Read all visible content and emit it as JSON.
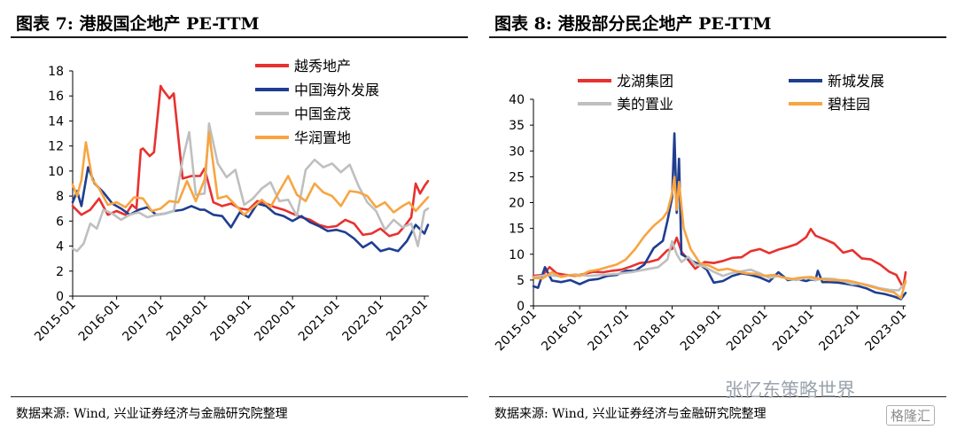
{
  "charts": [
    {
      "title": "图表 7:  港股国企地产 PE-TTM",
      "source": "数据来源: Wind, 兴业证券经济与金融研究院整理"
    },
    {
      "title": "图表 8:  港股部分民企地产 PE-TTM",
      "source": "数据来源: Wind, 兴业证券经济与金融研究院整理"
    }
  ],
  "watermark": {
    "text": "张忆东策略世界",
    "logo": "格隆汇"
  },
  "chart_data": [
    {
      "type": "line",
      "title": "图表 7:  港股国企地产 PE-TTM",
      "xlabel": "",
      "ylabel": "",
      "ylim": [
        0,
        18
      ],
      "yticks": [
        0,
        2,
        4,
        6,
        8,
        10,
        12,
        14,
        16,
        18
      ],
      "xticks": [
        "2015-01",
        "2016-01",
        "2017-01",
        "2018-01",
        "2019-01",
        "2020-01",
        "2021-01",
        "2022-01",
        "2023-01"
      ],
      "xlim": [
        2015.0,
        2023.1
      ],
      "legend": "top-right",
      "grid": false,
      "series": [
        {
          "name": "越秀地产",
          "color": "#e8312f",
          "x": [
            2015.0,
            2015.2,
            2015.4,
            2015.6,
            2015.8,
            2016.0,
            2016.2,
            2016.35,
            2016.45,
            2016.55,
            2016.6,
            2016.75,
            2016.85,
            2017.0,
            2017.05,
            2017.2,
            2017.3,
            2017.5,
            2017.7,
            2017.9,
            2018.0,
            2018.2,
            2018.4,
            2018.6,
            2018.8,
            2019.0,
            2019.2,
            2019.4,
            2019.6,
            2019.8,
            2020.0,
            2020.2,
            2020.4,
            2020.6,
            2020.8,
            2021.0,
            2021.2,
            2021.4,
            2021.6,
            2021.8,
            2022.0,
            2022.2,
            2022.4,
            2022.55,
            2022.7,
            2022.8,
            2022.9,
            2023.0,
            2023.08
          ],
          "values": [
            7.2,
            6.5,
            6.9,
            7.8,
            6.5,
            6.8,
            6.5,
            7.3,
            7.0,
            11.7,
            11.8,
            11.2,
            11.5,
            16.8,
            16.5,
            15.8,
            16.2,
            9.4,
            9.6,
            9.6,
            10.2,
            7.5,
            7.2,
            7.4,
            7.0,
            6.9,
            7.6,
            7.4,
            7.1,
            6.9,
            6.6,
            6.3,
            6.1,
            5.7,
            5.5,
            5.6,
            6.1,
            5.8,
            4.9,
            5.0,
            5.4,
            4.8,
            5.0,
            5.6,
            6.3,
            9.0,
            8.2,
            8.8,
            9.2
          ]
        },
        {
          "name": "中国海外发展",
          "color": "#1f3e91",
          "x": [
            2015.0,
            2015.1,
            2015.2,
            2015.35,
            2015.5,
            2015.7,
            2015.9,
            2016.1,
            2016.3,
            2016.5,
            2016.7,
            2016.9,
            2017.1,
            2017.3,
            2017.5,
            2017.7,
            2017.9,
            2018.0,
            2018.2,
            2018.4,
            2018.6,
            2018.8,
            2019.0,
            2019.2,
            2019.4,
            2019.6,
            2019.8,
            2020.0,
            2020.2,
            2020.4,
            2020.6,
            2020.8,
            2021.0,
            2021.2,
            2021.4,
            2021.6,
            2021.8,
            2022.0,
            2022.2,
            2022.4,
            2022.6,
            2022.8,
            2023.0,
            2023.08
          ],
          "values": [
            7.5,
            8.4,
            7.2,
            10.3,
            9.0,
            8.3,
            7.4,
            7.0,
            6.5,
            6.9,
            7.1,
            6.5,
            6.6,
            6.8,
            6.9,
            7.2,
            6.9,
            6.9,
            6.5,
            6.4,
            5.5,
            6.7,
            6.3,
            7.4,
            7.2,
            6.6,
            6.4,
            6.0,
            6.4,
            5.9,
            5.6,
            5.2,
            5.3,
            5.1,
            4.6,
            3.9,
            4.3,
            3.6,
            3.8,
            3.6,
            4.4,
            5.7,
            5.0,
            5.7
          ]
        },
        {
          "name": "中国金茂",
          "color": "#bfbfbf",
          "x": [
            2015.0,
            2015.1,
            2015.25,
            2015.4,
            2015.55,
            2015.7,
            2015.9,
            2016.1,
            2016.3,
            2016.5,
            2016.7,
            2016.9,
            2017.1,
            2017.3,
            2017.5,
            2017.65,
            2017.8,
            2018.0,
            2018.1,
            2018.3,
            2018.5,
            2018.7,
            2018.9,
            2019.1,
            2019.3,
            2019.5,
            2019.7,
            2019.9,
            2020.1,
            2020.3,
            2020.5,
            2020.7,
            2020.9,
            2021.1,
            2021.3,
            2021.5,
            2021.7,
            2021.9,
            2022.1,
            2022.3,
            2022.5,
            2022.7,
            2022.85,
            2023.0,
            2023.08
          ],
          "values": [
            3.8,
            3.6,
            4.2,
            5.8,
            5.4,
            6.9,
            6.6,
            6.1,
            6.5,
            6.7,
            6.3,
            6.5,
            6.6,
            6.8,
            10.9,
            13.1,
            8.1,
            8.2,
            13.8,
            10.6,
            9.5,
            10.1,
            7.3,
            7.8,
            8.6,
            9.1,
            7.6,
            7.7,
            6.4,
            10.1,
            10.9,
            10.3,
            10.6,
            9.9,
            10.5,
            8.8,
            7.5,
            6.8,
            5.3,
            6.1,
            5.5,
            5.8,
            4.0,
            6.8,
            7.0
          ]
        },
        {
          "name": "华润置地",
          "color": "#f7a541",
          "x": [
            2015.0,
            2015.1,
            2015.2,
            2015.3,
            2015.45,
            2015.6,
            2015.8,
            2016.0,
            2016.2,
            2016.4,
            2016.6,
            2016.8,
            2017.0,
            2017.2,
            2017.4,
            2017.6,
            2017.8,
            2018.0,
            2018.1,
            2018.3,
            2018.5,
            2018.7,
            2018.9,
            2019.1,
            2019.3,
            2019.5,
            2019.7,
            2019.9,
            2020.1,
            2020.3,
            2020.5,
            2020.7,
            2020.9,
            2021.1,
            2021.3,
            2021.5,
            2021.7,
            2021.9,
            2022.1,
            2022.3,
            2022.5,
            2022.65,
            2022.8,
            2022.95,
            2023.08
          ],
          "values": [
            8.9,
            8.0,
            9.3,
            12.3,
            9.3,
            8.6,
            7.3,
            7.5,
            7.1,
            7.9,
            7.8,
            6.8,
            7.0,
            7.6,
            7.5,
            9.2,
            7.6,
            9.3,
            13.1,
            7.8,
            8.0,
            7.3,
            6.5,
            7.1,
            7.7,
            7.1,
            8.4,
            9.6,
            8.1,
            7.6,
            9.0,
            8.3,
            8.0,
            7.2,
            8.4,
            8.3,
            8.0,
            7.1,
            7.5,
            6.7,
            7.2,
            7.5,
            6.8,
            7.4,
            7.9
          ]
        }
      ]
    },
    {
      "type": "line",
      "title": "图表 8:  港股部分民企地产 PE-TTM",
      "xlabel": "",
      "ylabel": "",
      "ylim": [
        0,
        40
      ],
      "yticks": [
        0,
        5,
        10,
        15,
        20,
        25,
        30,
        35,
        40
      ],
      "xticks": [
        "2015-01",
        "2016-01",
        "2017-01",
        "2018-01",
        "2019-01",
        "2020-01",
        "2021-01",
        "2022-01",
        "2023-01"
      ],
      "xlim": [
        2015.0,
        2023.05
      ],
      "legend": "top",
      "grid": false,
      "series": [
        {
          "name": "龙湖集团",
          "color": "#e8312f",
          "x": [
            2015.0,
            2015.2,
            2015.35,
            2015.5,
            2015.7,
            2015.9,
            2016.1,
            2016.3,
            2016.5,
            2016.7,
            2016.9,
            2017.1,
            2017.3,
            2017.5,
            2017.7,
            2017.9,
            2018.0,
            2018.1,
            2018.2,
            2018.3,
            2018.5,
            2018.7,
            2018.9,
            2019.1,
            2019.3,
            2019.5,
            2019.7,
            2019.9,
            2020.1,
            2020.3,
            2020.5,
            2020.7,
            2020.9,
            2021.0,
            2021.1,
            2021.3,
            2021.5,
            2021.7,
            2021.9,
            2022.1,
            2022.3,
            2022.5,
            2022.7,
            2022.85,
            2023.0,
            2023.05
          ],
          "values": [
            5.8,
            6.0,
            7.5,
            6.3,
            6.0,
            5.8,
            6.2,
            6.6,
            6.5,
            6.8,
            7.0,
            7.6,
            8.3,
            8.5,
            9.0,
            10.8,
            11.0,
            13.2,
            10.5,
            9.4,
            7.2,
            8.5,
            8.3,
            8.7,
            9.3,
            9.4,
            10.6,
            11.0,
            10.2,
            10.9,
            11.4,
            12.0,
            13.3,
            14.9,
            13.6,
            12.9,
            12.1,
            10.3,
            10.8,
            9.2,
            9.0,
            8.0,
            6.6,
            6.0,
            3.5,
            6.5
          ]
        },
        {
          "name": "新城发展",
          "color": "#1f3e91",
          "x": [
            2015.0,
            2015.1,
            2015.25,
            2015.4,
            2015.6,
            2015.8,
            2016.0,
            2016.2,
            2016.4,
            2016.6,
            2016.8,
            2017.0,
            2017.2,
            2017.4,
            2017.6,
            2017.8,
            2017.9,
            2018.0,
            2018.05,
            2018.1,
            2018.15,
            2018.2,
            2018.3,
            2018.45,
            2018.6,
            2018.75,
            2018.9,
            2019.1,
            2019.3,
            2019.5,
            2019.7,
            2019.9,
            2020.1,
            2020.3,
            2020.5,
            2020.7,
            2020.9,
            2021.0,
            2021.1,
            2021.15,
            2021.25,
            2021.4,
            2021.6,
            2021.8,
            2022.0,
            2022.2,
            2022.4,
            2022.6,
            2022.8,
            2022.95,
            2023.05
          ],
          "values": [
            3.8,
            3.5,
            7.5,
            4.9,
            4.6,
            5.0,
            4.2,
            5.0,
            5.2,
            5.8,
            6.0,
            6.8,
            6.8,
            8.0,
            11.2,
            12.6,
            16.5,
            21.0,
            33.4,
            18.0,
            28.5,
            10.0,
            9.5,
            8.6,
            8.0,
            7.0,
            4.5,
            4.8,
            5.8,
            6.3,
            6.0,
            5.5,
            4.7,
            6.5,
            5.0,
            5.2,
            4.8,
            5.1,
            5.0,
            6.8,
            4.6,
            4.6,
            4.5,
            4.2,
            3.9,
            3.4,
            2.6,
            2.3,
            1.8,
            1.3,
            2.5
          ]
        },
        {
          "name": "美的置业",
          "color": "#bfbfbf",
          "x": [
            2015.0,
            2015.3,
            2015.6,
            2015.9,
            2016.2,
            2016.5,
            2016.8,
            2017.1,
            2017.4,
            2017.7,
            2017.9,
            2018.0,
            2018.1,
            2018.2,
            2018.35,
            2018.5,
            2018.7,
            2018.9,
            2019.1,
            2019.3,
            2019.5,
            2019.7,
            2019.9,
            2020.1,
            2020.3,
            2020.5,
            2020.7,
            2020.9,
            2021.1,
            2021.3,
            2021.5,
            2021.7,
            2021.9,
            2022.1,
            2022.3,
            2022.5,
            2022.7,
            2022.9,
            2023.05
          ],
          "values": [
            5.6,
            6.0,
            5.7,
            6.1,
            5.8,
            6.0,
            6.2,
            6.5,
            7.0,
            7.5,
            9.0,
            12.5,
            10.0,
            8.5,
            9.5,
            8.0,
            7.6,
            6.6,
            5.8,
            6.4,
            6.7,
            7.0,
            6.3,
            5.4,
            5.8,
            5.2,
            5.0,
            5.5,
            5.0,
            5.3,
            5.2,
            4.8,
            4.2,
            4.3,
            3.9,
            3.4,
            3.1,
            3.0,
            4.5
          ]
        },
        {
          "name": "碧桂园",
          "color": "#f7a541",
          "x": [
            2015.0,
            2015.2,
            2015.4,
            2015.6,
            2015.8,
            2016.0,
            2016.2,
            2016.4,
            2016.6,
            2016.8,
            2017.0,
            2017.2,
            2017.4,
            2017.6,
            2017.8,
            2017.9,
            2018.0,
            2018.05,
            2018.1,
            2018.15,
            2018.25,
            2018.4,
            2018.6,
            2018.8,
            2019.0,
            2019.2,
            2019.4,
            2019.6,
            2019.8,
            2020.0,
            2020.2,
            2020.4,
            2020.6,
            2020.8,
            2021.0,
            2021.2,
            2021.4,
            2021.6,
            2021.8,
            2022.0,
            2022.2,
            2022.4,
            2022.6,
            2022.8,
            2022.95,
            2023.05
          ],
          "values": [
            5.4,
            5.3,
            6.5,
            5.6,
            6.0,
            5.8,
            6.7,
            7.0,
            7.5,
            8.0,
            9.0,
            11.0,
            13.5,
            15.5,
            17.0,
            18.3,
            21.8,
            25.0,
            18.6,
            24.0,
            15.0,
            11.0,
            8.3,
            7.8,
            6.9,
            7.2,
            6.7,
            6.3,
            6.2,
            5.8,
            6.0,
            5.5,
            5.2,
            5.5,
            5.6,
            5.2,
            5.0,
            5.0,
            4.9,
            4.5,
            4.0,
            3.5,
            3.0,
            2.6,
            1.5,
            4.9
          ]
        }
      ]
    }
  ]
}
